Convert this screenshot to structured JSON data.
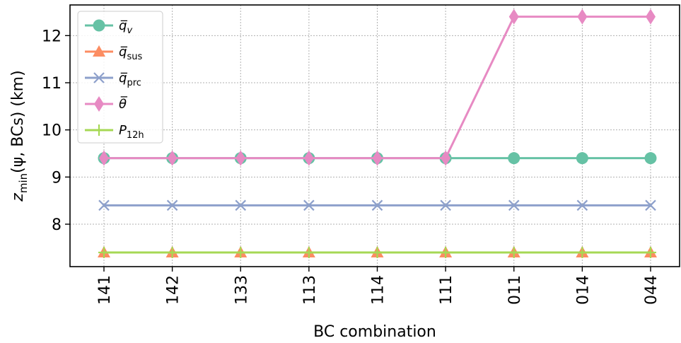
{
  "chart_data": {
    "type": "line",
    "xlabel": "BC combination",
    "ylabel": {
      "main": "z",
      "sub": "min",
      "rest": "(ψ, BCs) (km)"
    },
    "categories": [
      "141",
      "142",
      "133",
      "113",
      "114",
      "111",
      "011",
      "014",
      "044"
    ],
    "ylim": [
      7.1,
      12.65
    ],
    "yticks": [
      8,
      9,
      10,
      11,
      12
    ],
    "grid": true,
    "legend_position": "upper-left",
    "series": [
      {
        "name": "q̅",
        "sub": "v",
        "color": "#66c2a5",
        "marker": "circle",
        "values": [
          9.4,
          9.4,
          9.4,
          9.4,
          9.4,
          9.4,
          9.4,
          9.4,
          9.4
        ]
      },
      {
        "name": "q̅",
        "sub": "sus",
        "color": "#fc8d62",
        "marker": "triangle",
        "values": [
          7.4,
          7.4,
          7.4,
          7.4,
          7.4,
          7.4,
          7.4,
          7.4,
          7.4
        ]
      },
      {
        "name": "q̅",
        "sub": "prc",
        "color": "#8da0cb",
        "marker": "x",
        "values": [
          8.4,
          8.4,
          8.4,
          8.4,
          8.4,
          8.4,
          8.4,
          8.4,
          8.4
        ]
      },
      {
        "name": "θ̅",
        "sub": "",
        "color": "#e78ac3",
        "marker": "diamond",
        "values": [
          9.4,
          9.4,
          9.4,
          9.4,
          9.4,
          9.4,
          12.4,
          12.4,
          12.4
        ]
      },
      {
        "name": "P",
        "sub": "12h",
        "color": "#a6d854",
        "marker": "plus",
        "values": [
          7.4,
          7.4,
          7.4,
          7.4,
          7.4,
          7.4,
          7.4,
          7.4,
          7.4
        ]
      }
    ]
  }
}
